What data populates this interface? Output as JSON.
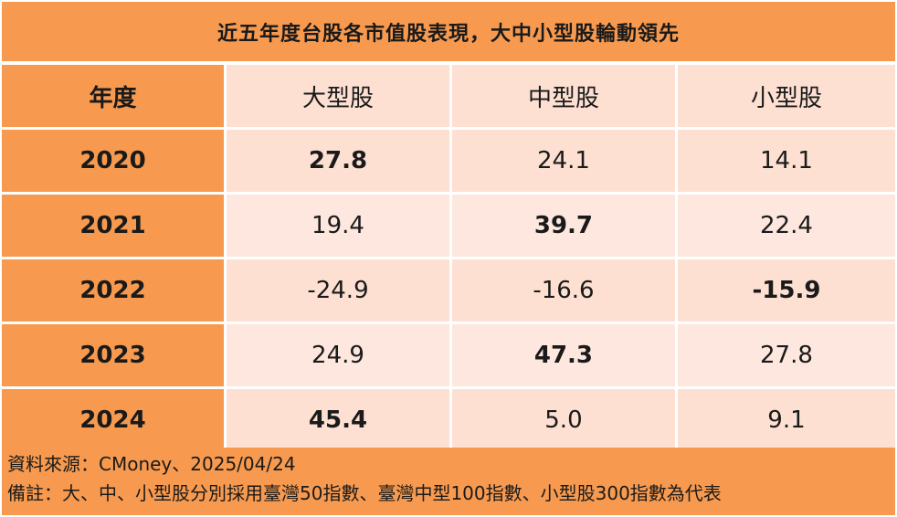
{
  "title": "近五年度台股各市值股表現，大中小型股輪動領先",
  "header": {
    "year": "年度",
    "cols": [
      "大型股",
      "中型股",
      "小型股"
    ]
  },
  "rows": [
    {
      "year": "2020",
      "values": [
        "27.8",
        "24.1",
        "14.1"
      ],
      "highlight": 0
    },
    {
      "year": "2021",
      "values": [
        "19.4",
        "39.7",
        "22.4"
      ],
      "highlight": 1
    },
    {
      "year": "2022",
      "values": [
        "-24.9",
        "-16.6",
        "-15.9"
      ],
      "highlight": 2
    },
    {
      "year": "2023",
      "values": [
        "24.9",
        "47.3",
        "27.8"
      ],
      "highlight": 1
    },
    {
      "year": "2024",
      "values": [
        "45.4",
        "5.0",
        "9.1"
      ],
      "highlight": 0
    }
  ],
  "footer": {
    "source": "資料來源：CMoney、2025/04/24",
    "note": "備註：大、中、小型股分別採用臺灣50指數、臺灣中型100指數、小型股300指數為代表"
  },
  "colors": {
    "header_bg": "#f79a4f",
    "highlight_text": "#c00000",
    "cell_bg": "#fde7de"
  }
}
